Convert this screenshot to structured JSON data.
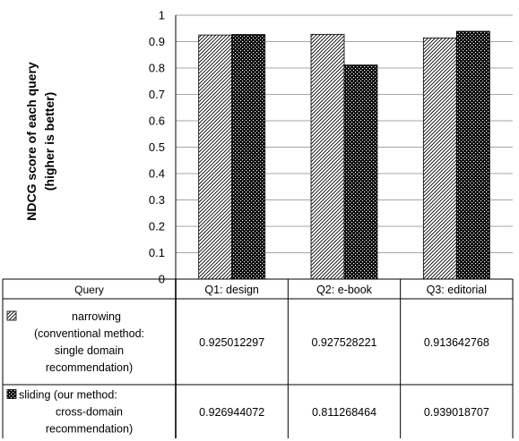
{
  "chart_data": {
    "type": "bar",
    "title": "",
    "xlabel": "",
    "ylabel_line1": "NDCG score of each query",
    "ylabel_line2": "(higher is better)",
    "ylim": [
      0,
      1
    ],
    "yticks": [
      "0",
      "0.1",
      "0.2",
      "0.3",
      "0.4",
      "0.5",
      "0.6",
      "0.7",
      "0.8",
      "0.9",
      "1"
    ],
    "grid": true,
    "categories": [
      "Q1: design",
      "Q2: e-book",
      "Q3: editorial"
    ],
    "series": [
      {
        "name_lines": [
          "narrowing",
          "(conventional method:",
          "single domain",
          "recommendation)"
        ],
        "pattern": "diagonal-hatch",
        "values": [
          0.925012297,
          0.927528221,
          0.913642768
        ],
        "labels": [
          "0.925012297",
          "0.927528221",
          "0.913642768"
        ]
      },
      {
        "name_lines": [
          "sliding (our method:",
          "cross-domain",
          "recommendation)"
        ],
        "pattern": "dots",
        "values": [
          0.926944072,
          0.811268464,
          0.939018707
        ],
        "labels": [
          "0.926944072",
          "0.811268464",
          "0.939018707"
        ]
      }
    ],
    "table_header": "Query"
  }
}
